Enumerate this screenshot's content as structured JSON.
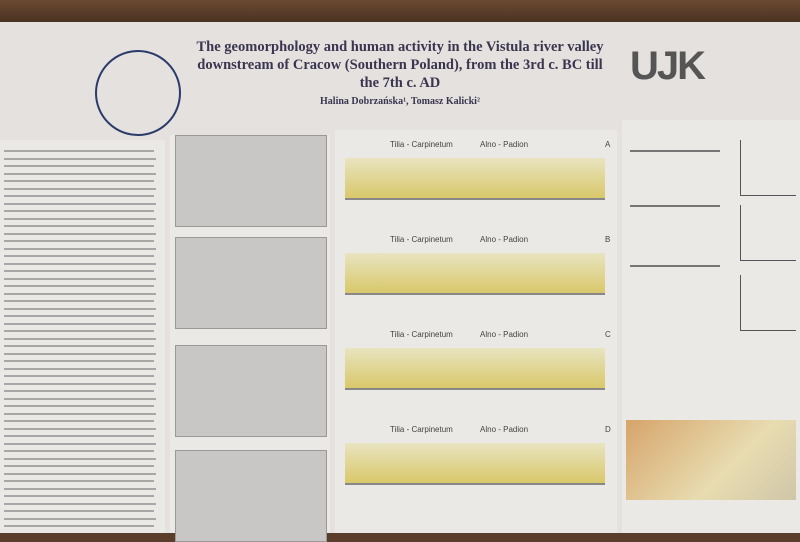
{
  "header": {
    "title": "The geomorphology and human activity in the Vistula river valley downstream of Cracow (Southern Poland), from the 3rd c. BC till the 7th c. AD",
    "authors": "Halina Dobrzańska¹, Tomasz Kalicki²",
    "logo": "UJK"
  },
  "sections": [
    {
      "label": "A",
      "left": "Tilia - Carpinetum",
      "right": "Alno - Padion"
    },
    {
      "label": "B",
      "left": "Tilia - Carpinetum",
      "right": "Alno - Padion"
    },
    {
      "label": "C",
      "left": "Tilia - Carpinetum",
      "right": "Alno - Padion"
    },
    {
      "label": "D",
      "left": "Tilia - Carpinetum",
      "right": "Alno - Padion"
    }
  ]
}
